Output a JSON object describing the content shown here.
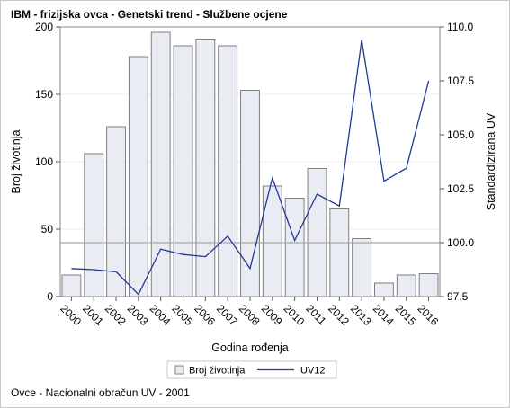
{
  "title": "IBM - frizijska ovca - Genetski trend - Službene ocjene",
  "footnote": "Ovce - Nacionalni obračun UV - 2001",
  "colors": {
    "bar_fill": "#eaecf3",
    "bar_stroke": "#7f7f7f",
    "line": "#1f3a93",
    "reference_line": "#a8a8a8",
    "grid": "#ececec"
  },
  "chart_data": {
    "type": "bar",
    "categories": [
      "2000",
      "2001",
      "2002",
      "2003",
      "2004",
      "2005",
      "2006",
      "2007",
      "2008",
      "2009",
      "2010",
      "2011",
      "2012",
      "2013",
      "2014",
      "2015",
      "2016"
    ],
    "xlabel": "Godina rođenja",
    "ylabel": "Broj životinja",
    "y2label": "Standardizirana UV",
    "ylim": [
      0,
      200
    ],
    "y2lim": [
      97.5,
      110.0
    ],
    "yticks": [
      "0",
      "50",
      "100",
      "150",
      "200"
    ],
    "y2ticks": [
      "97.5",
      "100.0",
      "102.5",
      "105.0",
      "107.5",
      "110.0"
    ],
    "reference_line_y2": 100.0,
    "grid": true,
    "legend_position": "bottom",
    "series": [
      {
        "name": "Broj životinja",
        "kind": "bar",
        "axis": "left",
        "values": [
          16,
          106,
          126,
          178,
          196,
          186,
          191,
          186,
          153,
          82,
          73,
          95,
          65,
          43,
          10,
          16,
          17
        ]
      },
      {
        "name": "UV12",
        "kind": "line",
        "axis": "right",
        "values": [
          98.8,
          98.75,
          98.65,
          97.6,
          99.7,
          99.45,
          99.35,
          100.3,
          98.8,
          103.0,
          100.1,
          102.25,
          101.7,
          109.4,
          102.85,
          103.45,
          107.5
        ]
      }
    ]
  }
}
